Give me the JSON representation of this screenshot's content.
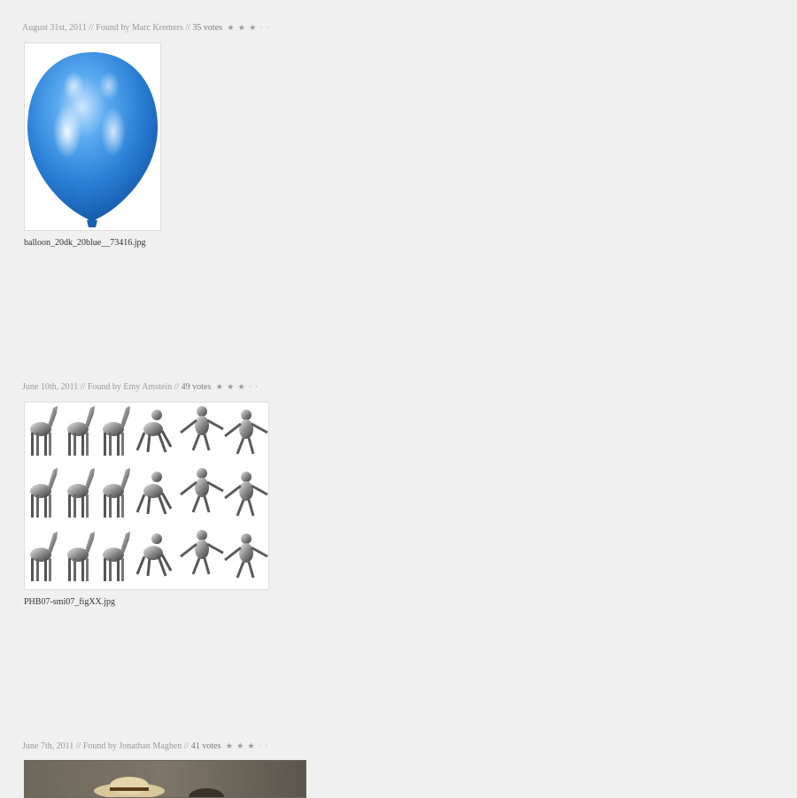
{
  "posts": [
    {
      "date": "August 31st, 2011",
      "separator": "//",
      "found_by": "Found by Marc Kremers",
      "votes": "35 votes",
      "stars": [
        "★",
        "★",
        "★",
        "·",
        "·"
      ],
      "filename": "balloon_20dk_20blue__73416.jpg",
      "image": "blue-balloon"
    },
    {
      "date": "June 10th, 2011",
      "separator": "//",
      "found_by": "Found by Emy Amstein",
      "votes": "49 votes",
      "stars": [
        "★",
        "★",
        "★",
        "·",
        "·"
      ],
      "filename": "PHB07-smi07_figXX.jpg",
      "image": "horse-to-human-morph-grid"
    },
    {
      "date": "June 7th, 2011",
      "separator": "//",
      "found_by": "Found by Jonathan Maghen",
      "votes": "41 votes",
      "stars": [
        "★",
        "★",
        "★",
        "·",
        "·"
      ],
      "filename": "",
      "image": "painting-straw-hat"
    }
  ]
}
